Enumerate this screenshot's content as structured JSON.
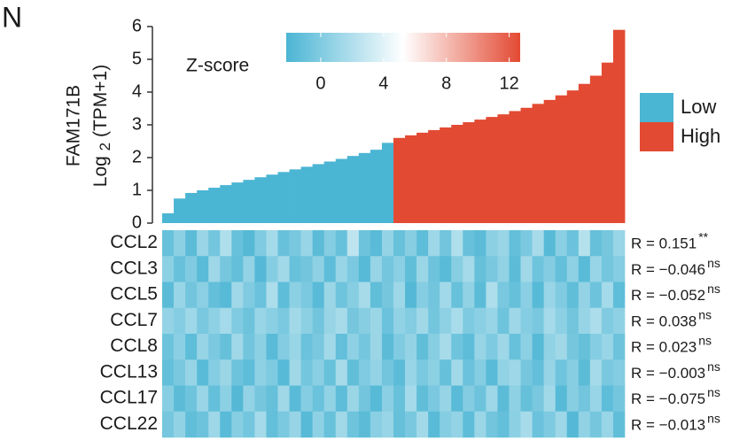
{
  "panel_label": "N",
  "chart_data": {
    "type": "sorted-bar-heatmap",
    "ylabel": {
      "gene": "FAM171B",
      "base": "Log",
      "sub": "2",
      "rest": "(TPM+1)"
    },
    "ylim": [
      0,
      6
    ],
    "yticks": [
      0,
      1,
      2,
      3,
      4,
      5,
      6
    ],
    "series": [
      {
        "name": "Low",
        "color": "#4bb5d4",
        "values": [
          0.3,
          0.75,
          0.92,
          1.0,
          1.08,
          1.16,
          1.24,
          1.32,
          1.4,
          1.48,
          1.56,
          1.64,
          1.72,
          1.8,
          1.88,
          1.96,
          2.05,
          2.14,
          2.24,
          2.45
        ]
      },
      {
        "name": "High",
        "color": "#e34a33",
        "values": [
          2.6,
          2.68,
          2.76,
          2.84,
          2.92,
          3.0,
          3.08,
          3.16,
          3.24,
          3.32,
          3.42,
          3.52,
          3.64,
          3.76,
          3.9,
          4.05,
          4.25,
          4.5,
          4.9,
          5.9
        ]
      }
    ],
    "colorbar": {
      "title": "Z-score",
      "lim": [
        -2.2,
        12.7
      ],
      "ticks": [
        0,
        4,
        8,
        12
      ],
      "colors": [
        "#4bb5d4",
        "#ffffff",
        "#e34a33"
      ]
    },
    "heatmap": [
      {
        "name": "CCL2",
        "r": 0.151,
        "r_label": "R = 0.151",
        "sig": "**",
        "values": [
          -1,
          0.5,
          -1.5,
          1,
          -0.5,
          2,
          -1,
          -1.8,
          0,
          1.5,
          -1,
          -0.3,
          1,
          -1.5,
          0.2,
          -1,
          2.5,
          -0.8,
          -1.6,
          0.8,
          -1,
          0.3,
          -1.4,
          1.2,
          -0.6,
          2,
          -1,
          -1.5,
          0.5,
          1,
          -1.2,
          -0.2,
          1.6,
          -1.7,
          0.4,
          -0.9,
          2.2,
          -1.1,
          -0.4,
          1
        ]
      },
      {
        "name": "CCL3",
        "r": -0.046,
        "r_label": "R = −0.046",
        "sig": "ns",
        "values": [
          0.5,
          -1,
          0,
          -1.6,
          1.2,
          -0.4,
          -1.2,
          0.8,
          -1.8,
          0.2,
          1.4,
          -1,
          -0.6,
          0.6,
          -1.4,
          1,
          -0.2,
          -1.7,
          0.9,
          -0.5,
          0.4,
          -1.3,
          1.1,
          -0.8,
          -1.6,
          0.3,
          1.5,
          -1.1,
          -0.3,
          0.7,
          -1.5,
          1.3,
          -0.7,
          0.1,
          -1.2,
          0.6,
          -1.6,
          1,
          -0.5,
          0.2
        ]
      },
      {
        "name": "CCL5",
        "r": -0.052,
        "r_label": "R = −0.052",
        "sig": "ns",
        "values": [
          -1.5,
          1,
          -0.6,
          0.4,
          -1.2,
          -1.7,
          1.3,
          0,
          -0.9,
          1.8,
          -1.4,
          0.5,
          -0.2,
          -1.6,
          1.1,
          -0.7,
          0.3,
          1.6,
          -1.3,
          -0.4,
          1.2,
          -1.8,
          0.2,
          -0.6,
          1.4,
          -1,
          0.7,
          -1.5,
          1.9,
          -0.3,
          -1.1,
          0.4,
          -1.7,
          1,
          0,
          -1.3,
          0.8,
          -0.8,
          1.5,
          -1.4
        ]
      },
      {
        "name": "CCL7",
        "r": 0.038,
        "r_label": "R = 0.038",
        "sig": "ns",
        "values": [
          0.8,
          0.2,
          1.2,
          -0.3,
          0.6,
          1.5,
          0,
          -0.8,
          1,
          0.4,
          -0.2,
          1.4,
          0.5,
          -0.6,
          0.9,
          1.6,
          -0.4,
          0.3,
          1.1,
          -0.9,
          0.7,
          0.1,
          1.3,
          -0.5,
          0.6,
          1.7,
          -0.1,
          0.4,
          1,
          -0.7,
          1.2,
          0.2,
          -0.3,
          1.5,
          0.5,
          -0.6,
          0.9,
          1.8,
          0,
          0.6
        ]
      },
      {
        "name": "CCL8",
        "r": 0.023,
        "r_label": "R = 0.023",
        "sig": "ns",
        "values": [
          -0.8,
          0.4,
          -1.4,
          0.9,
          -0.2,
          -1.1,
          1.3,
          -0.6,
          0.5,
          -1.6,
          0.1,
          1,
          -0.9,
          -0.3,
          1.4,
          -1.2,
          0.6,
          -0.5,
          1.1,
          -1.5,
          0,
          0.8,
          -1.3,
          0.3,
          1.6,
          -0.7,
          -1.4,
          0.9,
          -0.1,
          1.2,
          -1,
          0.5,
          -1.7,
          0.7,
          1.3,
          -0.4,
          -1.1,
          0.2,
          1,
          -0.8
        ]
      },
      {
        "name": "CCL13",
        "r": -0.003,
        "r_label": "R = −0.003",
        "sig": "ns",
        "values": [
          -1.2,
          -0.3,
          0.9,
          -1.6,
          0.2,
          1.1,
          -0.8,
          -1.4,
          0.6,
          -0.1,
          -1.7,
          1.3,
          -0.5,
          0.4,
          -1,
          1.6,
          -1.3,
          0,
          0.8,
          -0.6,
          -1.5,
          1,
          -0.2,
          0.5,
          -1.1,
          1.4,
          -0.9,
          0.2,
          -1.6,
          0.7,
          1.2,
          -0.4,
          -1.2,
          0.9,
          -0.7,
          0.3,
          -1.5,
          1.5,
          -0.3,
          0.1
        ]
      },
      {
        "name": "CCL17",
        "r": -0.075,
        "r_label": "R = −0.075",
        "sig": "ns",
        "values": [
          0.3,
          -1.5,
          -0.7,
          1,
          -1.2,
          0.5,
          -1.8,
          0.8,
          -0.4,
          -1.1,
          1.3,
          -1.6,
          0.2,
          -0.9,
          0.7,
          -1.4,
          1.1,
          -0.6,
          -1.7,
          0.4,
          -1,
          1.5,
          -1.3,
          -0.2,
          0.9,
          -1.6,
          0.1,
          -0.8,
          1.2,
          -1.5,
          0.6,
          -1.1,
          -0.3,
          1.4,
          -1.7,
          0.3,
          -0.6,
          1,
          -1.4,
          -0.5
        ]
      },
      {
        "name": "CCL22",
        "r": -0.013,
        "r_label": "R = −0.013",
        "sig": "ns",
        "values": [
          -0.4,
          0.7,
          -1.3,
          -0.8,
          1.2,
          -1.6,
          0.3,
          -0.5,
          1.5,
          -1.2,
          -0.2,
          0.9,
          -1.7,
          0.6,
          -1,
          1.3,
          -0.7,
          -1.5,
          0.4,
          1,
          -1.1,
          -0.3,
          1.4,
          -1.6,
          0.2,
          0.8,
          -1.4,
          1.1,
          -0.6,
          -1.2,
          0.5,
          1.6,
          -0.9,
          -0.1,
          1.2,
          -1.8,
          0.7,
          -0.4,
          1,
          -1.3
        ]
      }
    ]
  }
}
